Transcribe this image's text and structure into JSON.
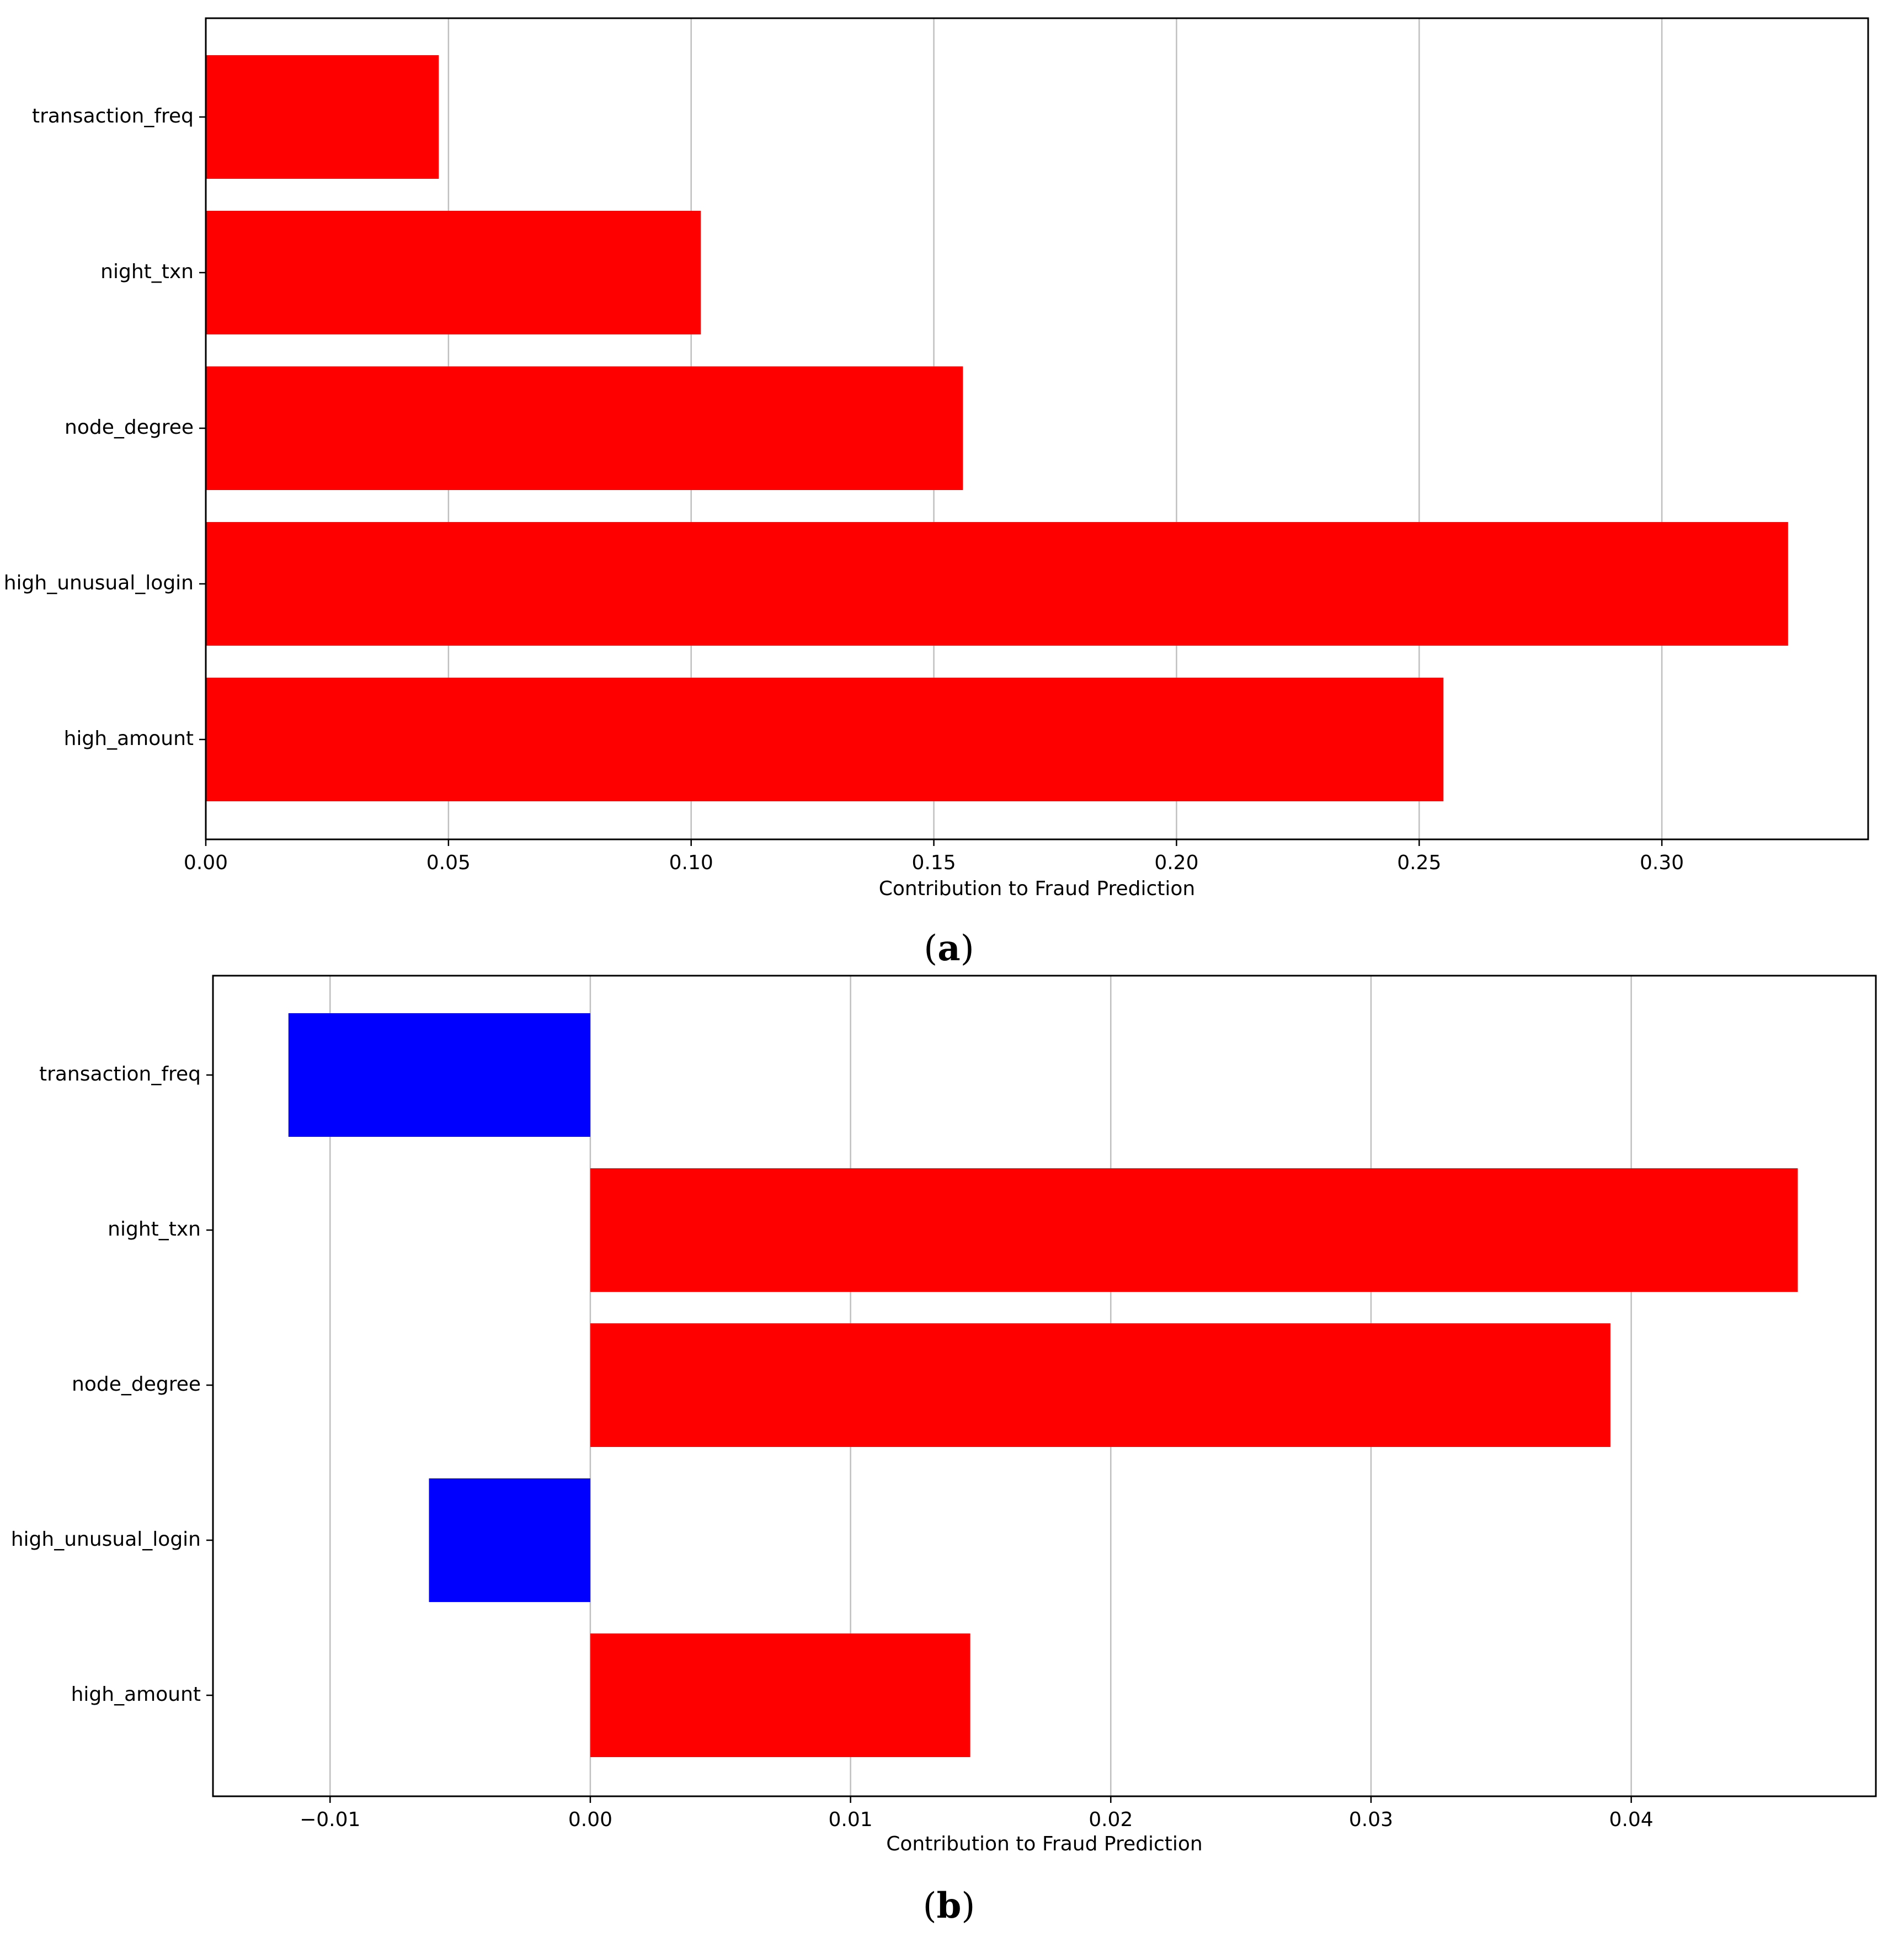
{
  "figure": {
    "panels": [
      {
        "label": "(a)",
        "label_bold": "a"
      },
      {
        "label": "(b)",
        "label_bold": "b"
      }
    ]
  },
  "colors": {
    "positive": "#ff0000",
    "negative": "#0000ff",
    "grid": "#bfbfbf",
    "axis": "#000000"
  },
  "chart_data": [
    {
      "type": "bar",
      "orientation": "horizontal",
      "categories": [
        "high_amount",
        "high_unusual_login",
        "node_degree",
        "night_txn",
        "transaction_freq"
      ],
      "values": [
        0.255,
        0.326,
        0.156,
        0.102,
        0.048
      ],
      "bar_colors": [
        "positive",
        "positive",
        "positive",
        "positive",
        "positive"
      ],
      "title": "",
      "xlabel": "Contribution to Fraud Prediction",
      "ylabel": "",
      "xlim": [
        0.0,
        0.3425
      ],
      "xticks": [
        0.0,
        0.05,
        0.1,
        0.15,
        0.2,
        0.25,
        0.3
      ],
      "xtick_labels": [
        "0.00",
        "0.05",
        "0.10",
        "0.15",
        "0.20",
        "0.25",
        "0.30"
      ],
      "grid": "vertical",
      "legend": "none"
    },
    {
      "type": "bar",
      "orientation": "horizontal",
      "categories": [
        "high_amount",
        "high_unusual_login",
        "node_degree",
        "night_txn",
        "transaction_freq"
      ],
      "values": [
        0.0146,
        -0.0062,
        0.0392,
        0.0464,
        -0.0116
      ],
      "bar_colors": [
        "positive",
        "negative",
        "positive",
        "positive",
        "negative"
      ],
      "title": "",
      "xlabel": "Contribution to Fraud Prediction",
      "ylabel": "",
      "xlim": [
        -0.0145,
        0.0494
      ],
      "xticks": [
        -0.01,
        0.0,
        0.01,
        0.02,
        0.03,
        0.04
      ],
      "xtick_labels": [
        "−0.01",
        "0.00",
        "0.01",
        "0.02",
        "0.03",
        "0.04"
      ],
      "grid": "vertical",
      "legend": "none"
    }
  ]
}
